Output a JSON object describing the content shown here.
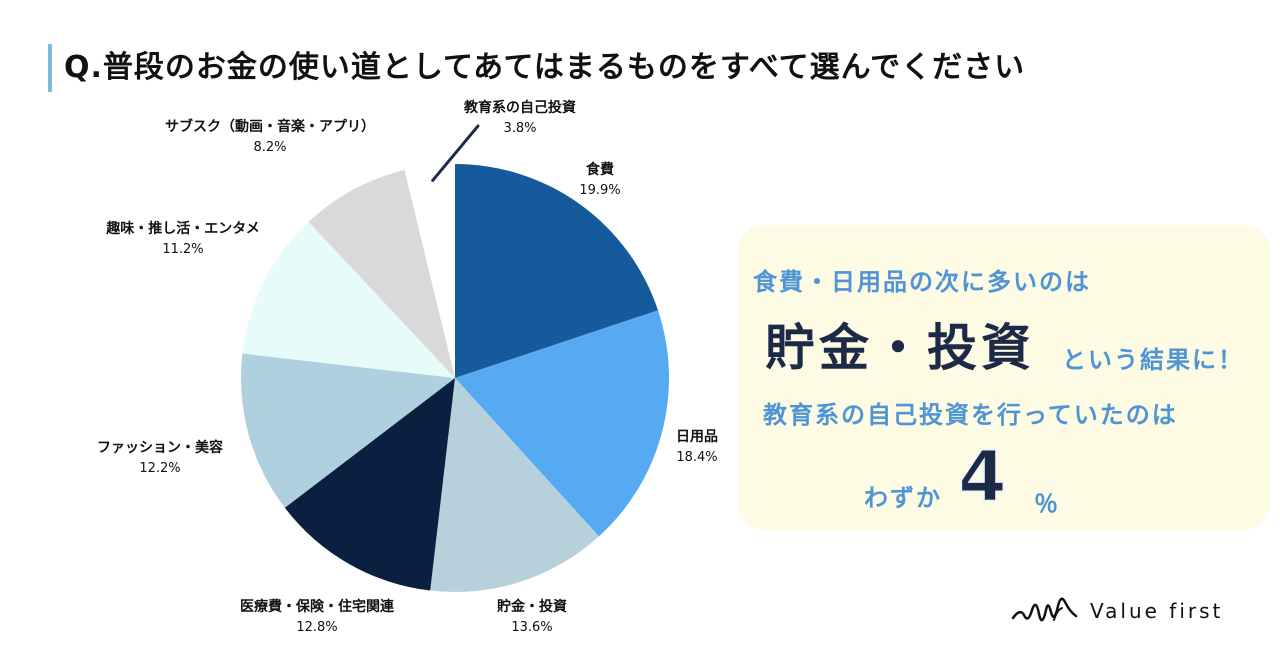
{
  "title": "Q.普段のお金の使い道としてあてはまるものをすべて選んでください",
  "chart_data": {
    "type": "pie",
    "title": "Q.普段のお金の使い道としてあてはまるものをすべて選んでください",
    "unit": "%",
    "slices": [
      {
        "label": "食費",
        "value": 19.9,
        "value_label": "19.9%",
        "color": "#155a9b"
      },
      {
        "label": "日用品",
        "value": 18.4,
        "value_label": "18.4%",
        "color": "#55aaf2"
      },
      {
        "label": "貯金・投資",
        "value": 13.6,
        "value_label": "13.6%",
        "color": "#b7d1dc"
      },
      {
        "label": "医療費・保険・住宅関連",
        "value": 12.8,
        "value_label": "12.8%",
        "color": "#0b1f40"
      },
      {
        "label": "ファッション・美容",
        "value": 12.2,
        "value_label": "12.2%",
        "color": "#afd0de"
      },
      {
        "label": "趣味・推し活・エンタメ",
        "value": 11.2,
        "value_label": "11.2%",
        "color": "#e6fbfa"
      },
      {
        "label": "サブスク（動画・音楽・アプリ）",
        "value": 8.2,
        "value_label": "8.2%",
        "color": "#d9d9d9"
      },
      {
        "label": "教育系の自己投資",
        "value": 3.8,
        "value_label": "3.8%",
        "color": "#ffffff",
        "exploded": true
      }
    ]
  },
  "callout": {
    "line1": "食費・日用品の次に多いのは",
    "highlight": "貯金・投資",
    "highlight_suffix": "という結果に！",
    "line3": "教育系の自己投資を行っていたのは",
    "prefix": "わずか",
    "number": "4",
    "unit": "％",
    "colors": {
      "accent": "#4f94d4",
      "emphasis": "#1c2a47",
      "background": "#fdfbe3"
    }
  },
  "logo": {
    "text": "Value first",
    "icon": "signature-logo-icon"
  }
}
